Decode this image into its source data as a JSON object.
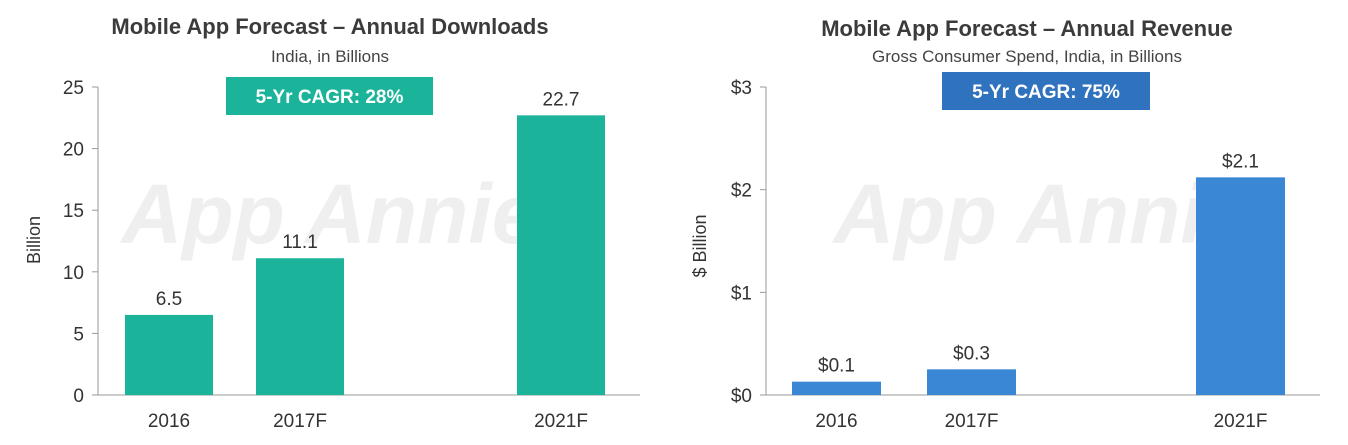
{
  "watermark": "App Annie",
  "chart_data": [
    {
      "type": "bar",
      "title": "Mobile App Forecast – Annual Downloads",
      "subtitle": "India, in Billions",
      "badge": "5-Yr CAGR: 28%",
      "ylabel": "Billion",
      "categories": [
        "2016",
        "2017F",
        "2021F"
      ],
      "values": [
        6.5,
        11.1,
        22.7
      ],
      "data_labels": [
        "6.5",
        "11.1",
        "22.7"
      ],
      "yticks": [
        0,
        5,
        10,
        15,
        20,
        25
      ],
      "ytick_labels": [
        "0",
        "5",
        "10",
        "15",
        "20",
        "25"
      ],
      "ylim": [
        0,
        25
      ],
      "grid": false,
      "colors": {
        "bar": "#1bb49a",
        "badge_bg": "#1bb49a",
        "badge_text": "#ffffff"
      }
    },
    {
      "type": "bar",
      "title": "Mobile App Forecast – Annual Revenue",
      "subtitle": "Gross Consumer Spend, India, in Billions",
      "badge": "5-Yr CAGR: 75%",
      "ylabel": "$ Billion",
      "categories": [
        "2016",
        "2017F",
        "2021F"
      ],
      "values": [
        0.13,
        0.25,
        2.12
      ],
      "data_labels": [
        "$0.1",
        "$0.3",
        "$2.1"
      ],
      "yticks": [
        0,
        1,
        2,
        3
      ],
      "ytick_labels": [
        "$0",
        "$1",
        "$2",
        "$3"
      ],
      "ylim": [
        0,
        3
      ],
      "grid": false,
      "colors": {
        "bar": "#3a87d6",
        "badge_bg": "#2f72bd",
        "badge_text": "#ffffff"
      }
    }
  ]
}
